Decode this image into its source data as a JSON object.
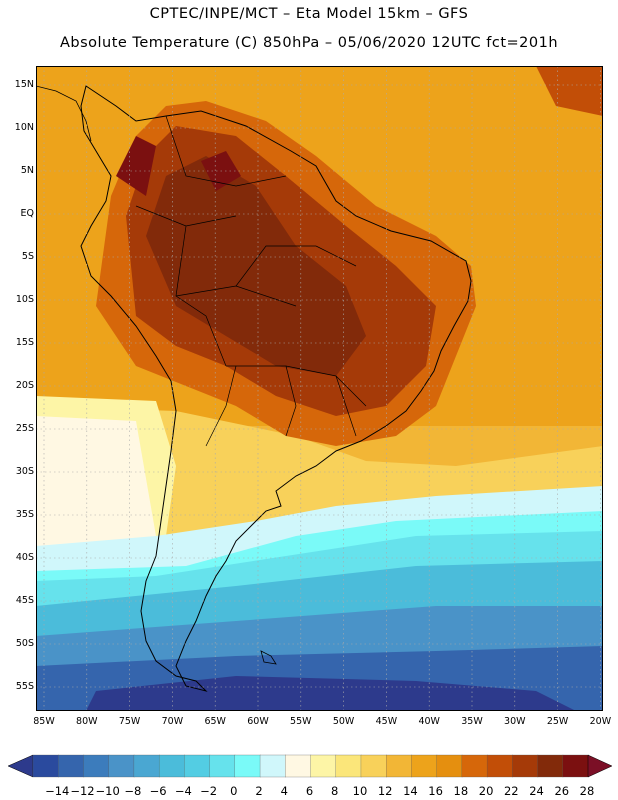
{
  "header": {
    "line1": "CPTEC/INPE/MCT –  Eta Model 15km – GFS",
    "line2": "Absolute Temperature (C) 850hPa – 05/06/2020 12UTC fct=201h"
  },
  "axes": {
    "lat_labels": [
      "15N",
      "10N",
      "5N",
      "EQ",
      "5S",
      "10S",
      "15S",
      "20S",
      "25S",
      "30S",
      "35S",
      "40S",
      "45S",
      "50S",
      "55S"
    ],
    "lon_labels": [
      "85W",
      "80W",
      "75W",
      "70W",
      "65W",
      "60W",
      "55W",
      "50W",
      "45W",
      "40W",
      "35W",
      "30W",
      "25W",
      "20W"
    ]
  },
  "colorbar": {
    "labels": [
      "-14",
      "-12",
      "-10",
      "-8",
      "-6",
      "-4",
      "-2",
      "0",
      "2",
      "4",
      "6",
      "8",
      "10",
      "12",
      "14",
      "16",
      "18",
      "20",
      "22",
      "24",
      "26",
      "28"
    ],
    "colors": [
      "#2a4a9e",
      "#3565ad",
      "#3c7cbc",
      "#4a93c8",
      "#4aa7d2",
      "#4bbcda",
      "#53cde3",
      "#66e2ec",
      "#7afaf8",
      "#d0f7fb",
      "#fff8e3",
      "#fdf5a6",
      "#fbe67a",
      "#f8d15a",
      "#f2b636",
      "#eda31b",
      "#e58f0f",
      "#d6670a",
      "#c24e07",
      "#a53a08",
      "#822a0a",
      "#7b1010"
    ],
    "low_extend_color": "#2d3a8c",
    "high_extend_color": "#7b0f26"
  },
  "map": {
    "region": "South America",
    "background_color": "#f2b636"
  }
}
